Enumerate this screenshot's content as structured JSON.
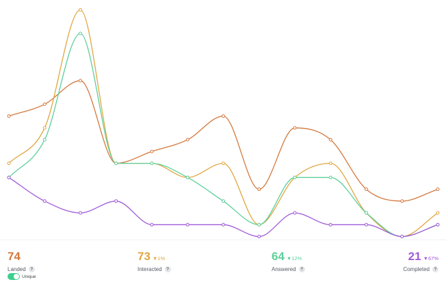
{
  "chart_data": {
    "type": "line",
    "x": [
      0,
      1,
      2,
      3,
      4,
      5,
      6,
      7,
      8,
      9,
      10,
      11,
      12
    ],
    "ylim": [
      0,
      100
    ],
    "grid": false,
    "series": [
      {
        "name": "Landed",
        "color": "#d4773c",
        "values": [
          52,
          57,
          67,
          32,
          37,
          42,
          52,
          21,
          47,
          42,
          21,
          16,
          21
        ]
      },
      {
        "name": "Interacted",
        "color": "#e0a640",
        "values": [
          32,
          47,
          97,
          32,
          32,
          26,
          32,
          6,
          26,
          32,
          11,
          1,
          11
        ]
      },
      {
        "name": "Answered",
        "color": "#5ccf9a",
        "values": [
          26,
          42,
          87,
          32,
          32,
          26,
          16,
          6,
          26,
          26,
          11,
          1,
          6
        ]
      },
      {
        "name": "Completed",
        "color": "#a05ad8",
        "values": [
          26,
          16,
          11,
          16,
          6,
          6,
          6,
          1,
          11,
          6,
          6,
          1,
          6
        ]
      }
    ]
  },
  "metrics": [
    {
      "key": "landed",
      "label": "Landed",
      "value": "74",
      "delta": "",
      "color": "#d4773c"
    },
    {
      "key": "interacted",
      "label": "Interacted",
      "value": "73",
      "delta": "▼1%",
      "color": "#e0a640"
    },
    {
      "key": "answered",
      "label": "Answered",
      "value": "64",
      "delta": "▼12%",
      "color": "#5ccf9a"
    },
    {
      "key": "completed",
      "label": "Completed",
      "value": "21",
      "delta": "▼67%",
      "color": "#a05ad8"
    }
  ],
  "help_icon_glyph": "?",
  "toggle": {
    "label": "Unique",
    "on": true
  }
}
